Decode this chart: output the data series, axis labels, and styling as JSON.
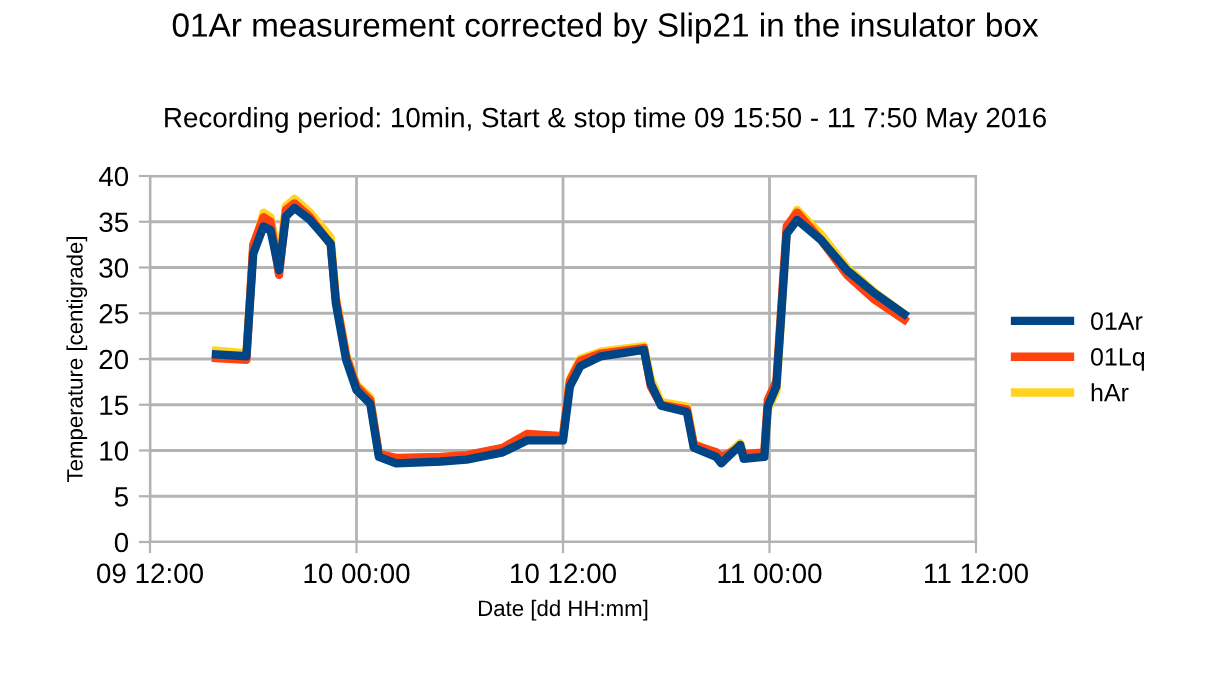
{
  "chart_data": {
    "type": "line",
    "title": "01Ar measurement corrected by Slip21 in the insulator box",
    "subtitle": "Recording period: 10min, Start & stop time 09 15:50 - 11 7:50 May 2016",
    "xlabel": "Date [dd HH:mm]",
    "ylabel": "Temperature [centigrade]",
    "x": [
      "2016-05-09T15:50",
      "2016-05-09T17:36",
      "2016-05-09T18:00",
      "2016-05-09T18:36",
      "2016-05-09T19:00",
      "2016-05-09T19:30",
      "2016-05-09T19:54",
      "2016-05-09T20:24",
      "2016-05-09T21:18",
      "2016-05-09T22:30",
      "2016-05-09T22:48",
      "2016-05-09T23:24",
      "2016-05-10T00:00",
      "2016-05-10T00:48",
      "2016-05-10T01:18",
      "2016-05-10T02:18",
      "2016-05-10T04:54",
      "2016-05-10T06:24",
      "2016-05-10T08:30",
      "2016-05-10T09:54",
      "2016-05-10T11:48",
      "2016-05-10T12:00",
      "2016-05-10T12:24",
      "2016-05-10T13:00",
      "2016-05-10T14:12",
      "2016-05-10T16:42",
      "2016-05-10T17:06",
      "2016-05-10T17:42",
      "2016-05-10T19:12",
      "2016-05-10T19:36",
      "2016-05-10T20:54",
      "2016-05-10T21:12",
      "2016-05-10T22:18",
      "2016-05-10T22:30",
      "2016-05-10T23:42",
      "2016-05-10T23:54",
      "2016-05-11T00:24",
      "2016-05-11T01:00",
      "2016-05-11T01:36",
      "2016-05-11T03:00",
      "2016-05-11T04:30",
      "2016-05-11T06:06",
      "2016-05-11T07:50"
    ],
    "series": [
      {
        "name": "01Ar",
        "color": "#004586",
        "values": [
          20.5,
          20.3,
          31.5,
          34.5,
          34.1,
          29.7,
          35.6,
          36.5,
          35.2,
          32.6,
          26.1,
          19.9,
          16.6,
          15.1,
          9.3,
          8.6,
          8.8,
          9.0,
          9.8,
          11.1,
          11.1,
          11.1,
          17.0,
          19.2,
          20.3,
          21.0,
          17.3,
          14.9,
          14.2,
          10.3,
          9.3,
          8.6,
          10.6,
          9.1,
          9.3,
          14.8,
          17.0,
          33.7,
          35.2,
          33.0,
          29.7,
          27.2,
          24.9
        ]
      },
      {
        "name": "01Lq",
        "color": "#ff420e",
        "values": [
          20.1,
          19.9,
          32.5,
          35.5,
          35.0,
          29.2,
          36.3,
          37.0,
          35.5,
          32.5,
          26.5,
          20.3,
          17.0,
          15.5,
          9.6,
          9.2,
          9.3,
          9.5,
          10.3,
          11.8,
          11.6,
          11.6,
          17.6,
          19.8,
          20.6,
          21.2,
          17.0,
          15.0,
          14.5,
          10.6,
          9.8,
          9.3,
          10.3,
          9.6,
          9.8,
          15.5,
          17.6,
          34.5,
          36.0,
          33.0,
          29.2,
          26.5,
          24.3
        ]
      },
      {
        "name": "hAr",
        "color": "#ffd320",
        "values": [
          20.9,
          20.6,
          32.0,
          36.0,
          35.5,
          30.5,
          36.7,
          37.5,
          36.0,
          33.3,
          26.8,
          20.5,
          17.2,
          15.8,
          9.5,
          9.0,
          9.2,
          9.4,
          10.2,
          11.6,
          11.5,
          11.5,
          17.8,
          20.0,
          20.8,
          21.4,
          17.8,
          15.3,
          14.8,
          10.8,
          9.6,
          9.0,
          10.8,
          9.4,
          9.6,
          14.5,
          16.5,
          34.0,
          36.3,
          33.6,
          30.0,
          27.3,
          24.9
        ]
      }
    ],
    "xlim": [
      "2016-05-09T12:00",
      "2016-05-11T12:00"
    ],
    "xticks": [
      {
        "value": "2016-05-09T12:00",
        "label": "09 12:00"
      },
      {
        "value": "2016-05-10T00:00",
        "label": "10 00:00"
      },
      {
        "value": "2016-05-10T12:00",
        "label": "10 12:00"
      },
      {
        "value": "2016-05-11T00:00",
        "label": "11 00:00"
      },
      {
        "value": "2016-05-11T12:00",
        "label": "11 12:00"
      }
    ],
    "ylim": [
      0,
      40
    ],
    "yticks": [
      0,
      5,
      10,
      15,
      20,
      25,
      30,
      35,
      40
    ],
    "grid": true,
    "legend": "right",
    "marker": "none",
    "line_style": "solid"
  }
}
